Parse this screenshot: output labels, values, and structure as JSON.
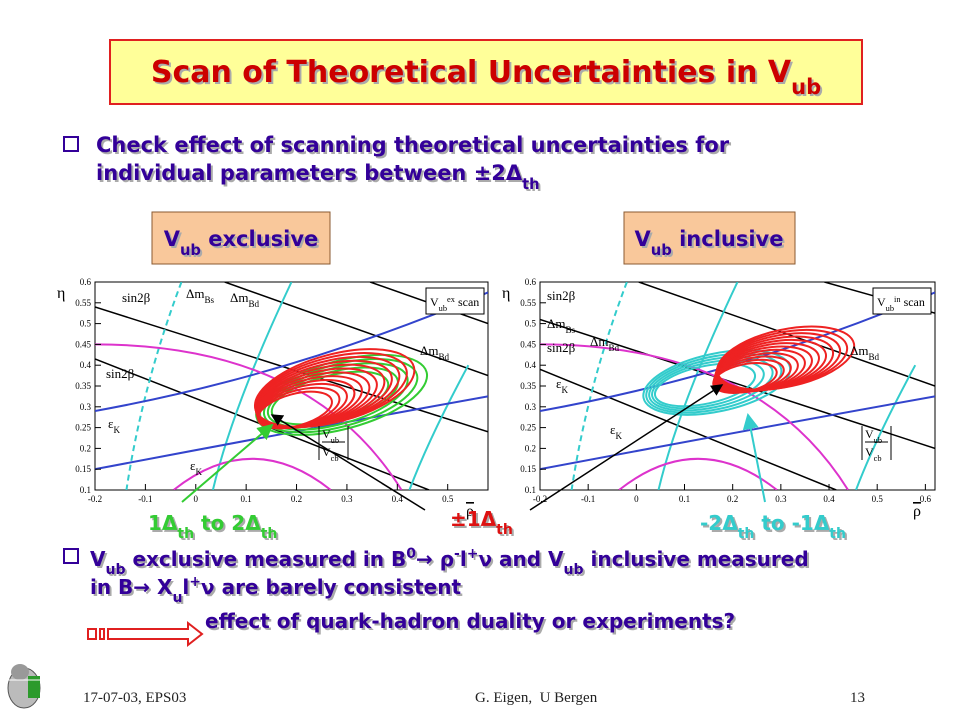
{
  "title": {
    "text": "Scan of Theoretical Uncertainties in V",
    "sub": "ub"
  },
  "bullet1": {
    "line1": "Check effect of scanning theoretical uncertainties for",
    "line2": "individual parameters between ±2Δ",
    "line2_sub": "th"
  },
  "panels": [
    {
      "label": [
        "V",
        "ub",
        " exclusive"
      ],
      "xlim": [
        -0.2,
        0.58
      ],
      "ylim": [
        0.1,
        0.6
      ],
      "xticks": [
        -0.2,
        -0.1,
        0,
        0.1,
        0.2,
        0.3,
        0.4,
        0.5
      ],
      "yticks": [
        0.1,
        0.15,
        0.2,
        0.25,
        0.3,
        0.35,
        0.4,
        0.45,
        0.5,
        0.55,
        0.6
      ],
      "ylabel": "η",
      "xlabel": "ρ",
      "labels": [
        {
          "text": "sin2β"
        },
        {
          "text": "Δm",
          "sub": "Bs"
        },
        {
          "text": "Δm",
          "sub": "Bd"
        },
        {
          "text": "sin2β"
        },
        {
          "text": "ε",
          "sub": "K"
        },
        {
          "text": "ε",
          "sub": "K"
        },
        {
          "text": "Δm",
          "sub": "Bd"
        }
      ],
      "scan": {
        "v": "V",
        "sub": "ub",
        "sup": "ex",
        "rest": " scan"
      },
      "frac": {
        "num": "V",
        "num_sub": "ub",
        "den": "V",
        "den_sub": "cb"
      }
    },
    {
      "label": [
        "V",
        "ub",
        " inclusive"
      ],
      "xlim": [
        -0.2,
        0.62
      ],
      "ylim": [
        0.1,
        0.6
      ],
      "xticks": [
        -0.2,
        -0.1,
        0,
        0.1,
        0.2,
        0.3,
        0.4,
        0.5,
        0.6
      ],
      "yticks": [
        0.1,
        0.15,
        0.2,
        0.25,
        0.3,
        0.35,
        0.4,
        0.45,
        0.5,
        0.55,
        0.6
      ],
      "ylabel": "η",
      "xlabel": "ρ",
      "labels": [
        {
          "text": "sin2β"
        },
        {
          "text": "Δm",
          "sub": "Bs"
        },
        {
          "text": "Δm",
          "sub": "Bd"
        },
        {
          "text": "sin2β"
        },
        {
          "text": "ε",
          "sub": "K"
        },
        {
          "text": "ε",
          "sub": "K"
        },
        {
          "text": "Δm",
          "sub": "Bd"
        }
      ],
      "scan": {
        "v": "V",
        "sub": "ub",
        "sup": "in",
        "rest": " scan"
      },
      "frac": {
        "num": "V",
        "num_sub": "ub",
        "den": "V",
        "den_sub": "cb"
      }
    }
  ],
  "annotations": [
    [
      "1Δ",
      "th",
      " to 2Δ",
      "th"
    ],
    [
      "±1Δ",
      "th"
    ],
    [
      "-2Δ",
      "th",
      " to -1Δ",
      "th"
    ]
  ],
  "bullet2": {
    "line1": [
      "V",
      "ub",
      " exclusive measured in B",
      "0",
      "→ ρ",
      "-",
      "l",
      "+",
      "ν and V",
      "ub",
      " inclusive measured"
    ],
    "line2": [
      "in B→ X",
      "u",
      "l",
      "+",
      "ν are barely consistent"
    ],
    "line3": "effect of quark-hadron duality or experiments?"
  },
  "footer": {
    "left": "17-07-03, EPS03",
    "center": "G. Eigen,  U Bergen",
    "right": "13"
  }
}
